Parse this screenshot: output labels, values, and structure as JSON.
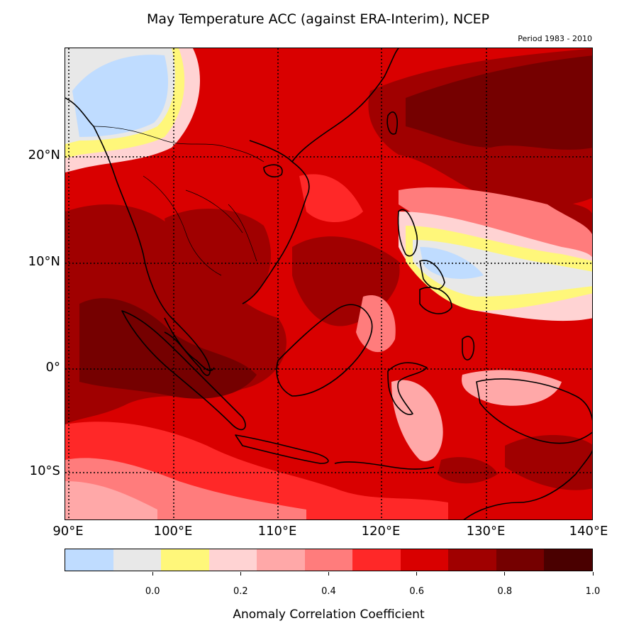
{
  "header": {
    "title": "May Temperature ACC (against ERA-Interim), NCEP",
    "period": "Period 1983 - 2010"
  },
  "map": {
    "extent": {
      "lon_min": 90,
      "lon_max": 140,
      "lat_min": -14.5,
      "lat_max": 30
    },
    "latitude_labels": [
      {
        "lat": 20,
        "text": "20°N"
      },
      {
        "lat": 10,
        "text": "10°N"
      },
      {
        "lat": 0,
        "text": "0°"
      },
      {
        "lat": -10,
        "text": "10°S"
      }
    ],
    "longitude_labels": [
      {
        "lon": 90,
        "text": "90°E"
      },
      {
        "lon": 100,
        "text": "100°E"
      },
      {
        "lon": 110,
        "text": "110°E"
      },
      {
        "lon": 120,
        "text": "120°E"
      },
      {
        "lon": 130,
        "text": "130°E"
      },
      {
        "lon": 140,
        "text": "140°E"
      }
    ]
  },
  "colorbar": {
    "label": "Anomaly Correlation Coefficient",
    "colors": [
      "#bfdcff",
      "#e8e8e8",
      "#fff77a",
      "#ffd3d3",
      "#ffa8a8",
      "#ff7c7c",
      "#ff2828",
      "#d90000",
      "#a00000",
      "#750000",
      "#4a0000"
    ],
    "ticks": [
      {
        "value": 0.0,
        "text": "0.0"
      },
      {
        "value": 0.2,
        "text": "0.2"
      },
      {
        "value": 0.4,
        "text": "0.4"
      },
      {
        "value": 0.6,
        "text": "0.6"
      },
      {
        "value": 0.8,
        "text": "0.8"
      },
      {
        "value": 1.0,
        "text": "1.0"
      }
    ],
    "range": [
      -0.2,
      1.0
    ]
  }
}
